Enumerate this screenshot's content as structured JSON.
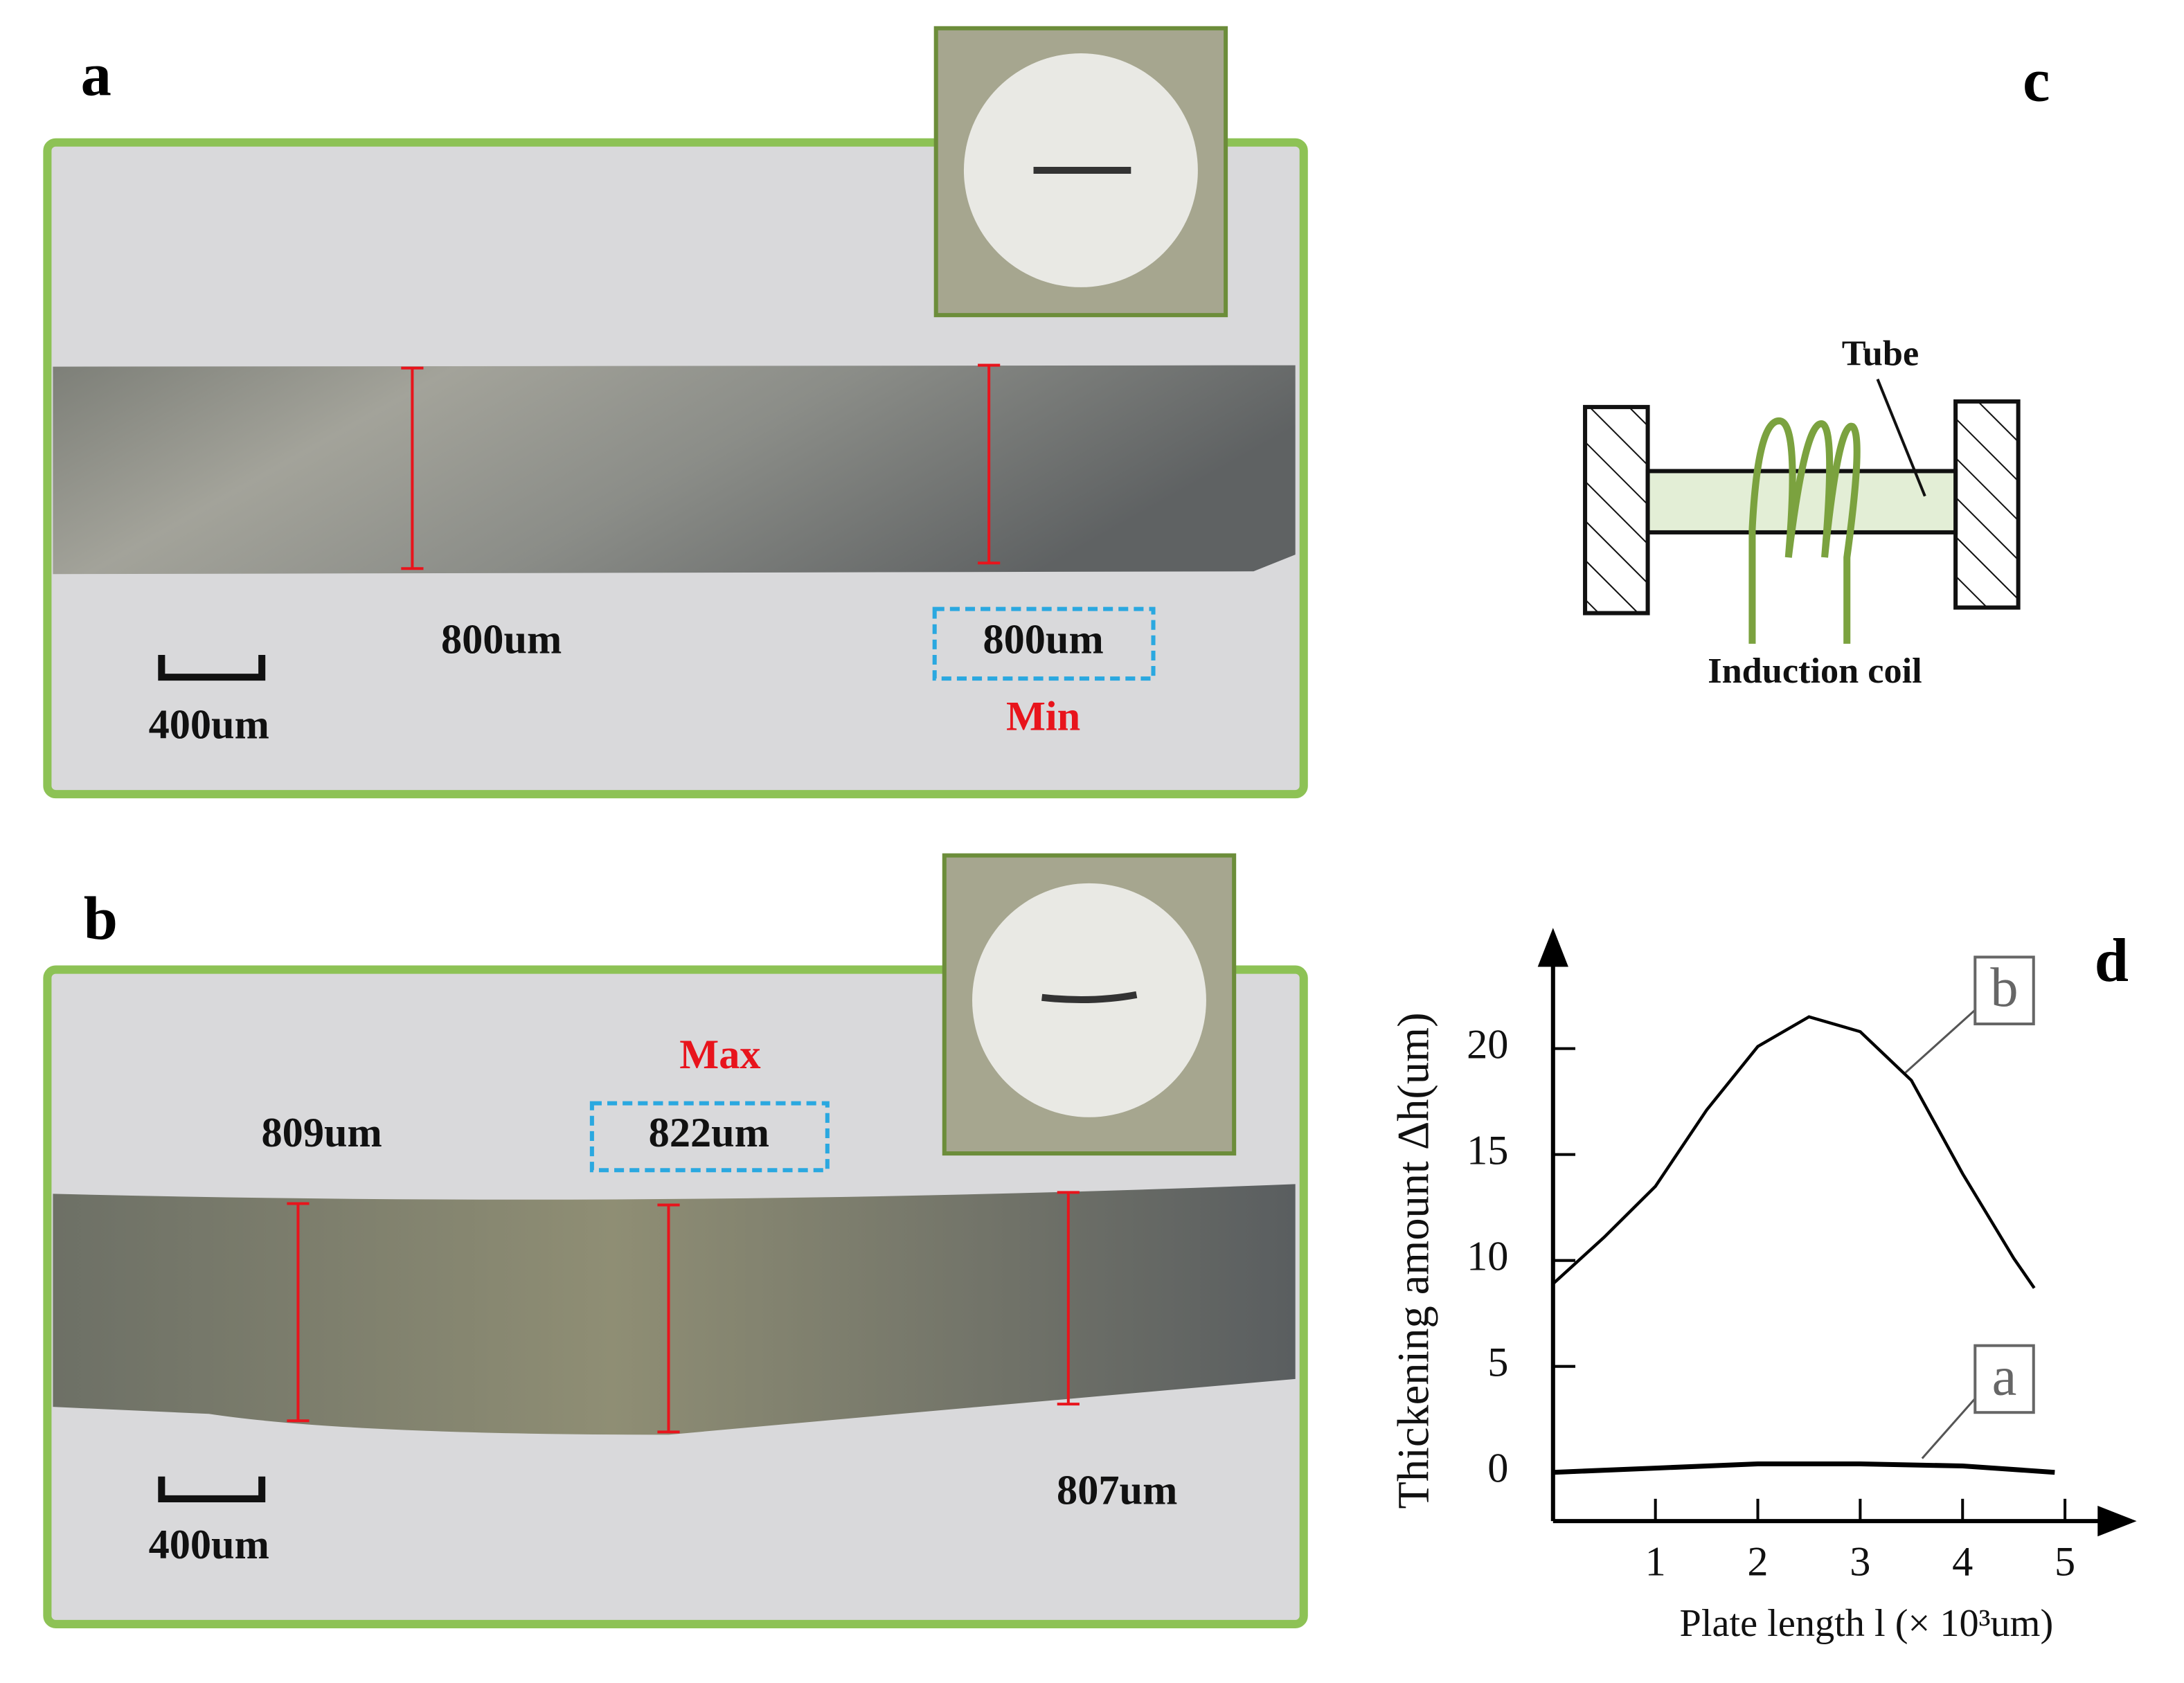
{
  "panels": {
    "a": {
      "letter": "a",
      "label_left": "800um",
      "label_right": "800um",
      "note": "Min",
      "scale": "400um"
    },
    "b": {
      "letter": "b",
      "note": "Max",
      "label_mid": "822um",
      "label_left": "809um",
      "label_right": "807um",
      "scale": "400um"
    },
    "c": {
      "letter": "c",
      "tube": "Tube",
      "coil": "Induction coil"
    }
  },
  "chart_data": {
    "type": "line",
    "panel_label": "d",
    "x_label": "Plate length l (× 10³um)",
    "y_label": "Thickening amount Δh(um)",
    "xlim": [
      0,
      5.7
    ],
    "ylim": [
      -2.3,
      25.7
    ],
    "xticks": [
      1,
      2,
      3,
      4,
      5
    ],
    "yticks": [
      0,
      5,
      10,
      15,
      20
    ],
    "series": [
      {
        "name": "b",
        "color": "#000000",
        "x": [
          0,
          0.5,
          1,
          1.5,
          2,
          2.5,
          3,
          3.5,
          4,
          4.5,
          4.7
        ],
        "values": [
          8.9,
          11.1,
          13.5,
          17.1,
          20.1,
          21.5,
          20.8,
          18.5,
          14.1,
          10.1,
          8.7
        ]
      },
      {
        "name": "a",
        "color": "#000000",
        "x": [
          0,
          1,
          2,
          2.5,
          3,
          4,
          4.9
        ],
        "values": [
          0,
          0.2,
          0.4,
          0.4,
          0.4,
          0.3,
          0
        ]
      }
    ]
  }
}
